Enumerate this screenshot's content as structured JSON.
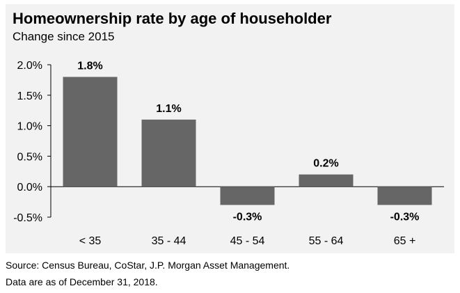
{
  "header": {
    "title": "Homeownership rate by age of householder",
    "subtitle": "Change since 2015"
  },
  "footer": {
    "source": "Source: Census Bureau, CoStar, J.P. Morgan Asset Management.",
    "date_note": "Data are as of December 31, 2018."
  },
  "chart_data": {
    "type": "bar",
    "title": "Homeownership rate by age of householder",
    "subtitle": "Change since 2015",
    "categories": [
      "< 35",
      "35 - 44",
      "45 - 54",
      "55 - 64",
      "65 +"
    ],
    "values": [
      1.8,
      1.1,
      -0.3,
      0.2,
      -0.3
    ],
    "data_labels": [
      "1.8%",
      "1.1%",
      "-0.3%",
      "0.2%",
      "-0.3%"
    ],
    "y_ticks": [
      -0.5,
      0.0,
      0.5,
      1.0,
      1.5,
      2.0
    ],
    "y_tick_labels": [
      "-0.5%",
      "0.0%",
      "0.5%",
      "1.0%",
      "1.5%",
      "2.0%"
    ],
    "ylim": [
      -0.5,
      2.0
    ],
    "xlabel": "",
    "ylabel": "",
    "grid": false,
    "legend": "none",
    "colors": {
      "bar": "#666666",
      "background": "#f2f2f2",
      "axis": "#000000"
    }
  }
}
